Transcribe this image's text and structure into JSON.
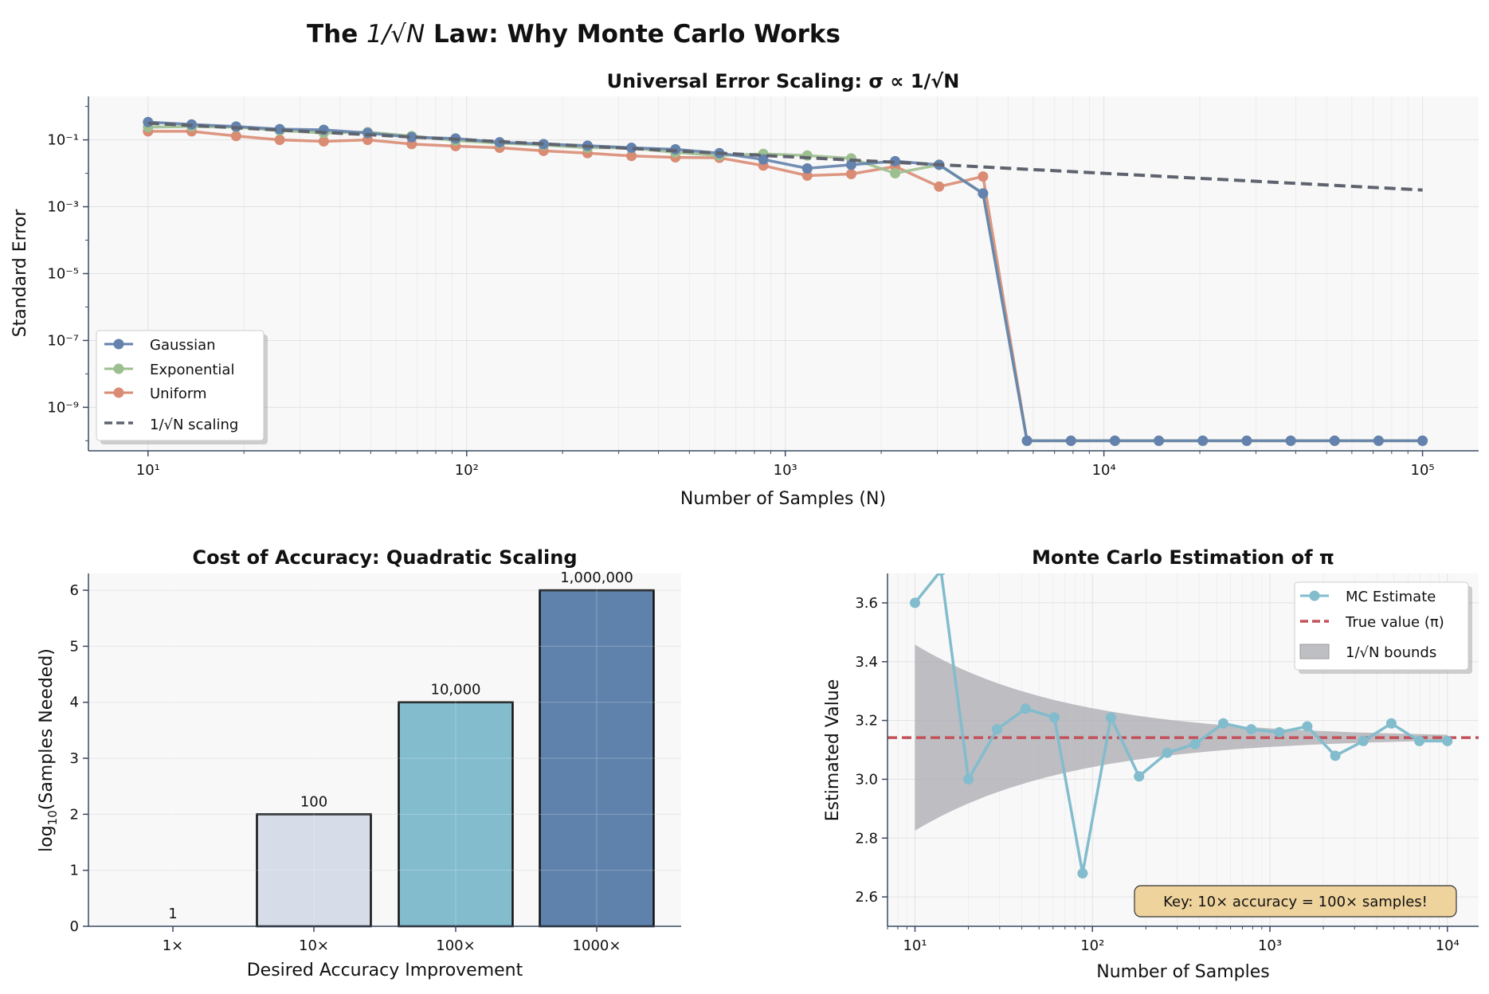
{
  "figure": {
    "title_pre": "The ",
    "title_math": "1/√N",
    "title_post": " Law: Why Monte Carlo Works"
  },
  "colors": {
    "gaussian": "#6382ad",
    "exponential": "#9dbf8f",
    "uniform": "#d98b73",
    "scaling": "#5f636e",
    "mc": "#82bccd",
    "true_value": "#c4525b",
    "band": "#a9aab0",
    "key_box": "#efd39d",
    "bar_100": "#d6dde8",
    "bar_10000": "#82bccd",
    "bar_1000000": "#5f82ac",
    "axes_bg": "#f8f8f8",
    "spine": "#3b4a63"
  },
  "chart_data": [
    {
      "type": "line",
      "title": "Universal Error Scaling: σ ∝ 1/√N",
      "xlabel": "Number of Samples (N)",
      "ylabel": "Standard Error",
      "xscale": "log",
      "yscale": "log",
      "xlim": [
        6.5,
        150000
      ],
      "ylim": [
        5e-11,
        2
      ],
      "xticks": [
        {
          "value": 10,
          "label": "10¹"
        },
        {
          "value": 100,
          "label": "10²"
        },
        {
          "value": 1000,
          "label": "10³"
        },
        {
          "value": 10000,
          "label": "10⁴"
        },
        {
          "value": 100000,
          "label": "10⁵"
        }
      ],
      "yticks": [
        {
          "value": 0.1,
          "label": "10⁻¹"
        },
        {
          "value": 0.001,
          "label": "10⁻³"
        },
        {
          "value": 1e-05,
          "label": "10⁻⁵"
        },
        {
          "value": 1e-07,
          "label": "10⁻⁷"
        },
        {
          "value": 1e-09,
          "label": "10⁻⁹"
        }
      ],
      "legend_position": "lower left",
      "grid": true,
      "x": [
        10,
        13.7,
        18.9,
        25.9,
        35.6,
        48.9,
        67.2,
        92.3,
        126.9,
        174.3,
        239.5,
        329.0,
        452.0,
        621.0,
        853.2,
        1172.1,
        1610.3,
        2212.2,
        3039.2,
        4175.3,
        5736.2,
        7880.5,
        10826.4,
        14873.5,
        20433.6,
        28072.2,
        38566.2,
        52983.2,
        72789.5,
        100000
      ],
      "series": [
        {
          "name": "Gaussian",
          "color_key": "gaussian",
          "values": [
            0.34,
            0.29,
            0.25,
            0.21,
            0.2,
            0.16,
            0.12,
            0.11,
            0.085,
            0.075,
            0.067,
            0.058,
            0.052,
            0.04,
            0.026,
            0.014,
            0.018,
            0.023,
            0.018,
            0.0025,
            1e-10,
            1e-10,
            1e-10,
            1e-10,
            1e-10,
            1e-10,
            1e-10,
            1e-10,
            1e-10,
            1e-10
          ]
        },
        {
          "name": "Exponential",
          "color_key": "exponential",
          "values": [
            0.24,
            0.25,
            0.24,
            0.19,
            0.16,
            0.17,
            0.13,
            0.095,
            0.08,
            0.07,
            0.058,
            0.057,
            0.042,
            0.034,
            0.038,
            0.034,
            0.028,
            0.01,
            0.018,
            0.0025,
            1e-10,
            1e-10,
            1e-10,
            1e-10,
            1e-10,
            1e-10,
            1e-10,
            1e-10,
            1e-10,
            1e-10
          ]
        },
        {
          "name": "Uniform",
          "color_key": "uniform",
          "values": [
            0.18,
            0.18,
            0.13,
            0.1,
            0.09,
            0.1,
            0.075,
            0.065,
            0.058,
            0.047,
            0.04,
            0.033,
            0.03,
            0.029,
            0.017,
            0.0085,
            0.0095,
            0.016,
            0.004,
            0.008,
            1e-10,
            1e-10,
            1e-10,
            1e-10,
            1e-10,
            1e-10,
            1e-10,
            1e-10,
            1e-10,
            1e-10
          ]
        },
        {
          "name": "1/√N scaling",
          "color_key": "scaling",
          "dashed": true,
          "formula": "1/sqrt(N)",
          "x": [
            10,
            100000
          ],
          "values": [
            0.3162,
            0.003162
          ]
        }
      ]
    },
    {
      "type": "bar",
      "title": "Cost of Accuracy: Quadratic Scaling",
      "xlabel": "Desired Accuracy Improvement",
      "ylabel_pre": "log",
      "ylabel_sub": "10",
      "ylabel_post": "(Samples Needed)",
      "ylim": [
        0,
        6.3
      ],
      "yticks": [
        0,
        1,
        2,
        3,
        4,
        5,
        6
      ],
      "categories": [
        "1×",
        "10×",
        "100×",
        "1000×"
      ],
      "values": [
        0,
        2,
        4,
        6
      ],
      "data_labels": [
        "1",
        "100",
        "10,000",
        "1,000,000"
      ],
      "bar_color_keys": [
        "bar_1",
        "bar_100",
        "bar_10000",
        "bar_1000000"
      ],
      "grid": true
    },
    {
      "type": "line",
      "title": "Monte Carlo Estimation of π",
      "xlabel": "Number of Samples",
      "ylabel": "Estimated Value",
      "xscale": "log",
      "xlim": [
        7,
        15000
      ],
      "ylim": [
        2.5,
        3.7
      ],
      "xticks": [
        {
          "value": 10,
          "label": "10¹"
        },
        {
          "value": 100,
          "label": "10²"
        },
        {
          "value": 1000,
          "label": "10³"
        },
        {
          "value": 10000,
          "label": "10⁴"
        }
      ],
      "yticks": [
        2.6,
        2.8,
        3.0,
        3.2,
        3.4,
        3.6
      ],
      "legend_position": "upper right",
      "grid": true,
      "series": [
        {
          "name": "MC Estimate",
          "color_key": "mc",
          "x": [
            10,
            14,
            20,
            29,
            42,
            61,
            88,
            127,
            183,
            264,
            379,
            546,
            785,
            1129,
            1624,
            2336,
            3360,
            4833,
            6952,
            10000
          ],
          "values": [
            3.6,
            3.71,
            3.0,
            3.17,
            3.24,
            3.21,
            2.68,
            3.21,
            3.01,
            3.09,
            3.12,
            3.19,
            3.17,
            3.16,
            3.18,
            3.08,
            3.13,
            3.19,
            3.13,
            3.13
          ]
        },
        {
          "name": "True value (π)",
          "color_key": "true_value",
          "dashed": true,
          "value": 3.14159
        },
        {
          "name": "1/√N bounds",
          "color_key": "band",
          "type": "area",
          "center": 3.14159,
          "halfwidth_formula": "1/sqrt(N)",
          "x_range": [
            10,
            10000
          ]
        }
      ],
      "annotation": "Key: 10× accuracy = 100× samples!"
    }
  ]
}
